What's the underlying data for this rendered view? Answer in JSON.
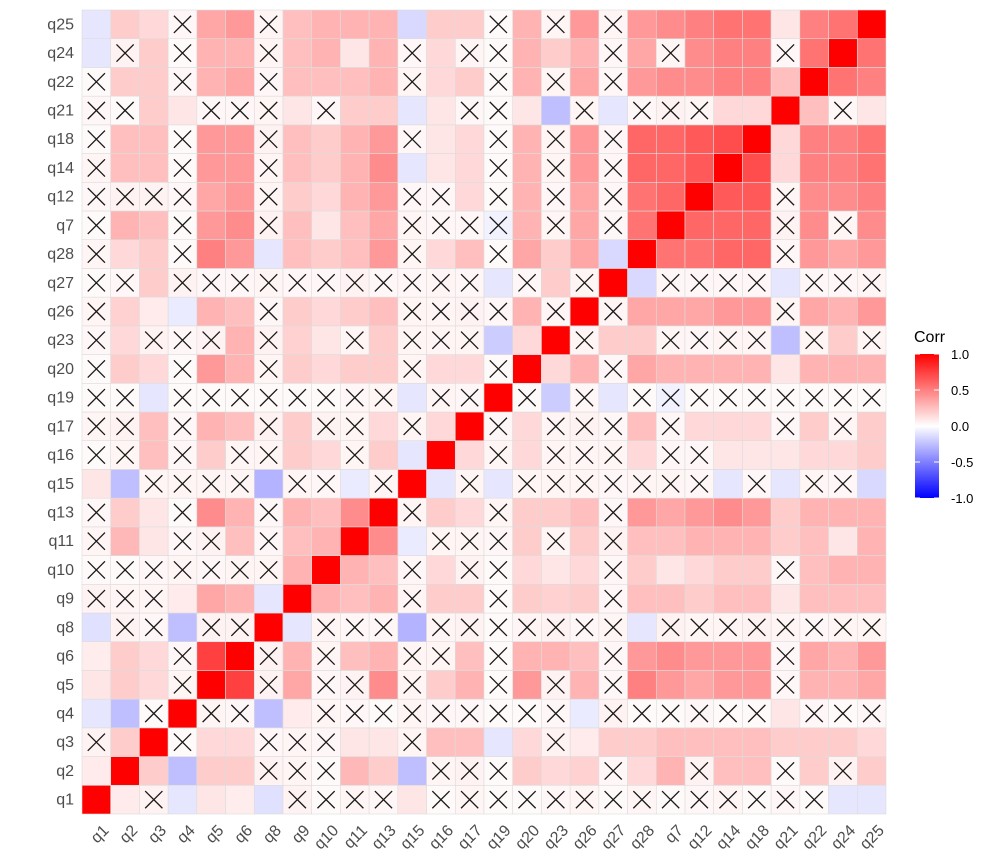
{
  "chart_data": {
    "type": "heatmap",
    "variables": [
      "q1",
      "q2",
      "q3",
      "q4",
      "q5",
      "q6",
      "q8",
      "q9",
      "q10",
      "q11",
      "q13",
      "q15",
      "q16",
      "q17",
      "q19",
      "q20",
      "q23",
      "q26",
      "q27",
      "q28",
      "q7",
      "q12",
      "q14",
      "q18",
      "q21",
      "q22",
      "q24",
      "q25"
    ],
    "x_labels": [
      "q1",
      "q2",
      "q3",
      "q4",
      "q5",
      "q6",
      "q8",
      "q9",
      "q10",
      "q11",
      "q13",
      "q15",
      "q16",
      "q17",
      "q19",
      "q20",
      "q23",
      "q26",
      "q27",
      "q28",
      "q7",
      "q12",
      "q14",
      "q18",
      "q21",
      "q22",
      "q24",
      "q25"
    ],
    "y_labels_bottom_to_top": [
      "q1",
      "q2",
      "q3",
      "q4",
      "q5",
      "q6",
      "q8",
      "q9",
      "q10",
      "q11",
      "q13",
      "q15",
      "q16",
      "q17",
      "q19",
      "q20",
      "q23",
      "q26",
      "q27",
      "q28",
      "q7",
      "q12",
      "q14",
      "q18",
      "q21",
      "q22",
      "q24",
      "q25"
    ],
    "matrix": [
      [
        1.0,
        0.08,
        0.05,
        -0.1,
        0.1,
        0.07,
        -0.12,
        0.05,
        0.02,
        0.04,
        0.03,
        0.1,
        0.02,
        0.04,
        0.02,
        0.02,
        0.03,
        0.04,
        0.02,
        0.04,
        0.02,
        0.03,
        0.04,
        0.02,
        0.03,
        0.02,
        -0.1,
        -0.1
      ],
      [
        0.08,
        1.0,
        0.2,
        -0.25,
        0.2,
        0.2,
        0.05,
        0.04,
        0.02,
        0.28,
        0.2,
        -0.25,
        0.04,
        0.05,
        0.02,
        0.2,
        0.15,
        0.18,
        0.03,
        0.15,
        0.3,
        0.05,
        0.25,
        0.25,
        0.02,
        0.2,
        0.05,
        0.2
      ],
      [
        0.05,
        0.2,
        1.0,
        0.02,
        0.15,
        0.15,
        0.03,
        0.04,
        0.03,
        0.1,
        0.1,
        0.04,
        0.25,
        0.25,
        -0.1,
        0.15,
        0.05,
        0.08,
        0.2,
        0.2,
        0.25,
        0.05,
        0.25,
        0.25,
        0.2,
        0.2,
        0.2,
        0.15
      ],
      [
        -0.1,
        -0.25,
        0.02,
        1.0,
        0.04,
        0.03,
        -0.25,
        0.08,
        0.04,
        0.03,
        0.02,
        0.04,
        0.03,
        0.03,
        0.02,
        0.02,
        0.03,
        -0.08,
        0.05,
        0.02,
        0.02,
        0.03,
        0.02,
        0.02,
        0.1,
        0.03,
        0.02,
        0.03
      ],
      [
        0.1,
        0.2,
        0.15,
        0.04,
        1.0,
        0.75,
        0.05,
        0.35,
        0.03,
        0.05,
        0.45,
        0.04,
        0.2,
        0.3,
        0.02,
        0.4,
        0.05,
        0.3,
        0.03,
        0.5,
        0.4,
        0.35,
        0.4,
        0.4,
        0.03,
        0.3,
        0.3,
        0.35
      ],
      [
        0.07,
        0.2,
        0.15,
        0.03,
        0.75,
        1.0,
        0.05,
        0.3,
        0.04,
        0.25,
        0.3,
        0.04,
        0.04,
        0.25,
        0.02,
        0.3,
        0.3,
        0.25,
        0.03,
        0.4,
        0.45,
        0.4,
        0.4,
        0.4,
        0.03,
        0.35,
        0.3,
        0.4
      ],
      [
        -0.12,
        0.05,
        0.03,
        -0.25,
        0.05,
        0.05,
        1.0,
        -0.1,
        0.04,
        0.03,
        0.03,
        -0.3,
        0.04,
        0.05,
        0.02,
        0.04,
        0.05,
        0.03,
        0.04,
        -0.1,
        0.05,
        0.04,
        0.04,
        0.05,
        0.04,
        0.03,
        0.04,
        0.04
      ],
      [
        0.05,
        0.04,
        0.04,
        0.08,
        0.35,
        0.3,
        -0.1,
        1.0,
        0.3,
        0.25,
        0.3,
        0.04,
        0.2,
        0.2,
        0.02,
        0.2,
        0.18,
        0.2,
        0.03,
        0.25,
        0.25,
        0.2,
        0.25,
        0.25,
        0.1,
        0.25,
        0.25,
        0.25
      ],
      [
        0.02,
        0.02,
        0.03,
        0.04,
        0.03,
        0.04,
        0.04,
        0.3,
        1.0,
        0.3,
        0.25,
        0.03,
        0.15,
        0.05,
        0.02,
        0.15,
        0.1,
        0.15,
        0.03,
        0.2,
        0.1,
        0.15,
        0.2,
        0.2,
        0.03,
        0.25,
        0.3,
        0.3
      ],
      [
        0.04,
        0.28,
        0.1,
        0.03,
        0.05,
        0.25,
        0.03,
        0.25,
        0.3,
        1.0,
        0.45,
        -0.08,
        0.04,
        0.04,
        0.03,
        0.2,
        0.04,
        0.2,
        0.05,
        0.25,
        0.25,
        0.3,
        0.3,
        0.3,
        0.2,
        0.25,
        0.1,
        0.3
      ],
      [
        0.03,
        0.2,
        0.1,
        0.02,
        0.45,
        0.3,
        0.03,
        0.3,
        0.25,
        0.45,
        1.0,
        0.04,
        0.2,
        0.15,
        0.04,
        0.2,
        0.2,
        0.25,
        0.03,
        0.4,
        0.35,
        0.4,
        0.45,
        0.4,
        0.2,
        0.3,
        0.3,
        0.3
      ],
      [
        0.1,
        -0.25,
        0.04,
        0.04,
        0.04,
        0.04,
        -0.3,
        0.04,
        0.03,
        -0.08,
        0.04,
        1.0,
        -0.1,
        0.04,
        -0.1,
        0.04,
        0.04,
        0.04,
        0.03,
        0.04,
        0.04,
        0.03,
        -0.1,
        0.03,
        -0.1,
        0.04,
        0.03,
        -0.15
      ],
      [
        0.02,
        0.04,
        0.25,
        0.03,
        0.2,
        0.04,
        0.04,
        0.2,
        0.15,
        0.04,
        0.2,
        -0.1,
        1.0,
        0.15,
        0.04,
        0.15,
        0.04,
        0.04,
        0.04,
        0.15,
        0.03,
        0.03,
        0.1,
        0.1,
        0.1,
        0.15,
        0.15,
        0.2
      ],
      [
        0.04,
        0.05,
        0.25,
        0.03,
        0.3,
        0.25,
        0.05,
        0.2,
        0.05,
        0.04,
        0.15,
        0.04,
        0.15,
        1.0,
        0.03,
        0.15,
        0.04,
        0.05,
        0.03,
        0.25,
        0.03,
        0.15,
        0.15,
        0.15,
        0.03,
        0.2,
        0.04,
        0.2
      ],
      [
        0.02,
        0.02,
        -0.1,
        0.02,
        0.02,
        0.02,
        0.02,
        0.02,
        0.02,
        0.03,
        0.04,
        -0.1,
        0.04,
        0.03,
        1.0,
        0.02,
        -0.2,
        0.03,
        -0.1,
        0.02,
        -0.05,
        0.02,
        0.02,
        0.02,
        0.02,
        0.02,
        0.02,
        0.02
      ],
      [
        0.02,
        0.2,
        0.15,
        0.02,
        0.4,
        0.3,
        0.04,
        0.2,
        0.15,
        0.2,
        0.2,
        0.04,
        0.15,
        0.15,
        0.02,
        1.0,
        0.15,
        0.3,
        0.03,
        0.35,
        0.3,
        0.3,
        0.3,
        0.3,
        0.1,
        0.3,
        0.3,
        0.3
      ],
      [
        0.03,
        0.15,
        0.05,
        0.03,
        0.05,
        0.3,
        0.05,
        0.18,
        0.1,
        0.04,
        0.2,
        0.04,
        0.04,
        0.04,
        -0.2,
        0.15,
        1.0,
        0.04,
        0.2,
        0.2,
        0.04,
        0.03,
        0.04,
        0.04,
        -0.25,
        0.04,
        0.2,
        0.04
      ],
      [
        0.04,
        0.18,
        0.08,
        -0.08,
        0.3,
        0.25,
        0.03,
        0.2,
        0.15,
        0.2,
        0.25,
        0.04,
        0.04,
        0.05,
        0.03,
        0.3,
        0.04,
        1.0,
        0.04,
        0.35,
        0.35,
        0.35,
        0.4,
        0.4,
        0.04,
        0.35,
        0.3,
        0.4
      ],
      [
        0.02,
        0.03,
        0.2,
        0.05,
        0.03,
        0.03,
        0.04,
        0.03,
        0.03,
        0.05,
        0.03,
        0.03,
        0.04,
        0.03,
        -0.1,
        0.03,
        0.2,
        0.04,
        1.0,
        -0.15,
        0.03,
        0.03,
        0.03,
        0.03,
        -0.1,
        0.03,
        0.03,
        0.04
      ],
      [
        0.04,
        0.15,
        0.2,
        0.02,
        0.5,
        0.4,
        -0.1,
        0.25,
        0.2,
        0.25,
        0.4,
        0.04,
        0.15,
        0.25,
        0.02,
        0.35,
        0.2,
        0.35,
        -0.15,
        1.0,
        0.55,
        0.55,
        0.6,
        0.6,
        0.03,
        0.4,
        0.35,
        0.4
      ],
      [
        0.02,
        0.3,
        0.25,
        0.02,
        0.4,
        0.45,
        0.05,
        0.25,
        0.1,
        0.25,
        0.35,
        0.04,
        0.03,
        0.03,
        -0.05,
        0.3,
        0.04,
        0.35,
        0.03,
        0.55,
        1.0,
        0.6,
        0.6,
        0.6,
        0.05,
        0.45,
        0.04,
        0.45
      ],
      [
        0.03,
        0.05,
        0.25,
        0.03,
        0.35,
        0.4,
        0.04,
        0.2,
        0.15,
        0.3,
        0.4,
        0.03,
        0.03,
        0.15,
        0.02,
        0.3,
        0.03,
        0.35,
        0.03,
        0.55,
        0.6,
        1.0,
        0.65,
        0.65,
        0.04,
        0.45,
        0.45,
        0.5
      ],
      [
        0.04,
        0.25,
        0.25,
        0.02,
        0.4,
        0.4,
        0.04,
        0.25,
        0.2,
        0.3,
        0.45,
        -0.1,
        0.1,
        0.15,
        0.02,
        0.3,
        0.04,
        0.4,
        0.03,
        0.6,
        0.6,
        0.65,
        1.0,
        0.7,
        0.15,
        0.5,
        0.5,
        0.55
      ],
      [
        0.02,
        0.25,
        0.25,
        0.02,
        0.4,
        0.4,
        0.05,
        0.25,
        0.2,
        0.3,
        0.4,
        0.03,
        0.1,
        0.15,
        0.02,
        0.3,
        0.04,
        0.4,
        0.03,
        0.6,
        0.6,
        0.65,
        0.7,
        1.0,
        0.15,
        0.5,
        0.5,
        0.55
      ],
      [
        0.03,
        0.02,
        0.2,
        0.1,
        0.03,
        0.03,
        0.04,
        0.1,
        0.03,
        0.2,
        0.2,
        -0.1,
        0.1,
        0.03,
        0.02,
        0.1,
        -0.25,
        0.04,
        -0.1,
        0.03,
        0.05,
        0.04,
        0.15,
        0.15,
        1.0,
        0.25,
        0.03,
        0.1
      ],
      [
        0.02,
        0.2,
        0.2,
        0.03,
        0.3,
        0.35,
        0.03,
        0.25,
        0.25,
        0.25,
        0.3,
        0.04,
        0.15,
        0.2,
        0.02,
        0.3,
        0.04,
        0.35,
        0.03,
        0.4,
        0.45,
        0.45,
        0.5,
        0.5,
        0.25,
        1.0,
        0.55,
        0.5
      ],
      [
        -0.1,
        0.05,
        0.2,
        0.02,
        0.3,
        0.3,
        0.04,
        0.25,
        0.3,
        0.1,
        0.3,
        0.03,
        0.15,
        0.04,
        0.02,
        0.3,
        0.2,
        0.3,
        0.03,
        0.35,
        0.04,
        0.45,
        0.5,
        0.5,
        0.03,
        0.55,
        1.0,
        0.55
      ],
      [
        -0.1,
        0.2,
        0.15,
        0.03,
        0.35,
        0.4,
        0.04,
        0.25,
        0.3,
        0.3,
        0.3,
        -0.15,
        0.2,
        0.2,
        0.02,
        0.3,
        0.04,
        0.4,
        0.04,
        0.4,
        0.45,
        0.5,
        0.55,
        0.55,
        0.1,
        0.5,
        0.55,
        1.0
      ]
    ],
    "insignificant_threshold": 0.06,
    "insignificant_marker": "cross",
    "color_scale": {
      "low": "#0000ff",
      "mid": "#ffffff",
      "high": "#ff0000",
      "domain": [
        -1,
        1
      ]
    },
    "legend": {
      "title": "Corr",
      "ticks": [
        "1.0",
        "0.5",
        "0.0",
        "-0.5",
        "-1.0"
      ],
      "tick_values": [
        1.0,
        0.5,
        0.0,
        -0.5,
        -1.0
      ],
      "placement": "right"
    },
    "x_tick_rotation": "45deg",
    "grid": true
  }
}
